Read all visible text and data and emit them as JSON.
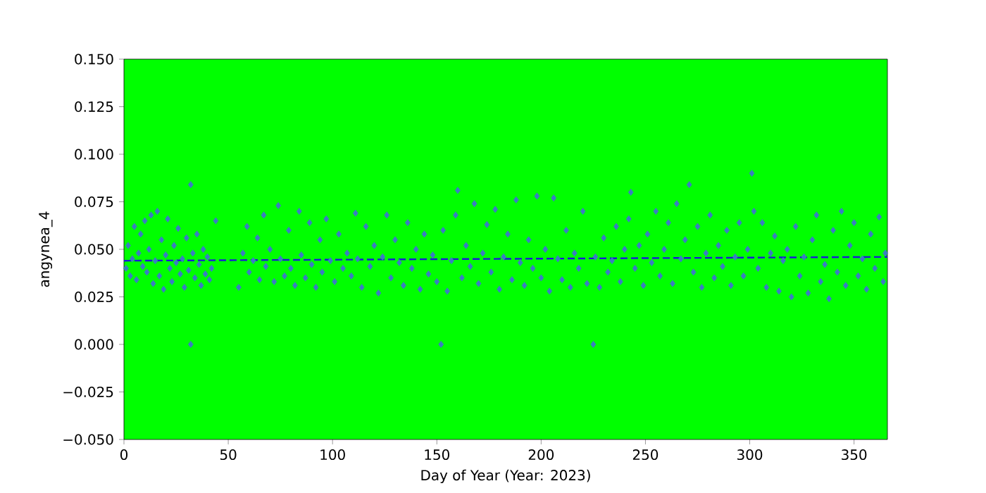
{
  "chart_data": {
    "type": "scatter",
    "xlabel": "Day of Year (Year: 2023)",
    "ylabel": "angynea_4",
    "xlim": [
      0,
      366
    ],
    "ylim": [
      -0.05,
      0.15
    ],
    "xticks": [
      0,
      50,
      100,
      150,
      200,
      250,
      300,
      350
    ],
    "yticks": [
      {
        "value": -0.05,
        "label": "−0.050"
      },
      {
        "value": -0.025,
        "label": "−0.025"
      },
      {
        "value": 0,
        "label": "0.000"
      },
      {
        "value": 0.025,
        "label": "0.025"
      },
      {
        "value": 0.05,
        "label": "0.050"
      },
      {
        "value": 0.075,
        "label": "0.075"
      },
      {
        "value": 0.1,
        "label": "0.100"
      },
      {
        "value": 0.125,
        "label": "0.125"
      },
      {
        "value": 0.15,
        "label": "0.150"
      }
    ],
    "series": [
      {
        "color": "#3a7dc2",
        "marker": "diamond",
        "x": [
          1,
          2,
          3,
          4,
          5,
          6,
          7,
          8,
          9,
          10,
          11,
          12,
          13,
          14,
          15,
          16,
          17,
          18,
          19,
          20,
          21,
          22,
          23,
          24,
          25,
          26,
          27,
          28,
          29,
          30,
          31,
          32,
          32,
          33,
          34,
          35,
          36,
          37,
          38,
          39,
          40,
          41,
          42,
          44,
          55,
          57,
          59,
          60,
          62,
          64,
          65,
          67,
          68,
          70,
          72,
          74,
          75,
          77,
          79,
          80,
          82,
          84,
          85,
          87,
          89,
          90,
          92,
          94,
          95,
          97,
          99,
          101,
          103,
          105,
          107,
          109,
          111,
          112,
          114,
          116,
          118,
          120,
          122,
          124,
          126,
          128,
          130,
          132,
          134,
          136,
          138,
          140,
          142,
          144,
          146,
          148,
          150,
          152,
          153,
          155,
          157,
          159,
          160,
          162,
          164,
          166,
          168,
          170,
          172,
          174,
          176,
          178,
          180,
          182,
          184,
          186,
          188,
          190,
          192,
          194,
          196,
          198,
          200,
          202,
          204,
          206,
          208,
          210,
          212,
          214,
          216,
          218,
          220,
          222,
          225,
          226,
          228,
          230,
          232,
          234,
          236,
          238,
          240,
          242,
          243,
          245,
          247,
          249,
          251,
          253,
          255,
          257,
          259,
          261,
          263,
          265,
          267,
          269,
          271,
          273,
          275,
          277,
          279,
          281,
          283,
          285,
          287,
          289,
          291,
          293,
          295,
          297,
          299,
          301,
          302,
          304,
          306,
          308,
          310,
          312,
          314,
          316,
          318,
          320,
          322,
          324,
          326,
          328,
          330,
          332,
          334,
          336,
          338,
          340,
          342,
          344,
          346,
          348,
          350,
          352,
          354,
          356,
          358,
          360,
          362,
          364,
          365
        ],
        "values": [
          0.04,
          0.052,
          0.036,
          0.045,
          0.062,
          0.034,
          0.048,
          0.058,
          0.041,
          0.065,
          0.038,
          0.05,
          0.068,
          0.032,
          0.044,
          0.07,
          0.036,
          0.055,
          0.029,
          0.047,
          0.066,
          0.04,
          0.033,
          0.052,
          0.043,
          0.061,
          0.037,
          0.045,
          0.03,
          0.056,
          0.039,
          0.084,
          0.0,
          0.048,
          0.035,
          0.058,
          0.042,
          0.031,
          0.05,
          0.037,
          0.046,
          0.034,
          0.04,
          0.065,
          0.03,
          0.048,
          0.062,
          0.038,
          0.044,
          0.056,
          0.034,
          0.068,
          0.041,
          0.05,
          0.033,
          0.073,
          0.045,
          0.036,
          0.06,
          0.04,
          0.031,
          0.07,
          0.047,
          0.035,
          0.064,
          0.042,
          0.03,
          0.055,
          0.038,
          0.066,
          0.044,
          0.033,
          0.058,
          0.04,
          0.048,
          0.036,
          0.069,
          0.045,
          0.03,
          0.062,
          0.041,
          0.052,
          0.027,
          0.046,
          0.068,
          0.035,
          0.055,
          0.043,
          0.031,
          0.064,
          0.04,
          0.05,
          0.029,
          0.058,
          0.037,
          0.047,
          0.033,
          0.0,
          0.06,
          0.028,
          0.044,
          0.068,
          0.081,
          0.035,
          0.052,
          0.041,
          0.074,
          0.032,
          0.048,
          0.063,
          0.038,
          0.071,
          0.029,
          0.046,
          0.058,
          0.034,
          0.076,
          0.043,
          0.031,
          0.055,
          0.04,
          0.078,
          0.035,
          0.05,
          0.028,
          0.077,
          0.045,
          0.034,
          0.06,
          0.03,
          0.048,
          0.04,
          0.07,
          0.032,
          0.0,
          0.046,
          0.03,
          0.056,
          0.038,
          0.044,
          0.062,
          0.033,
          0.05,
          0.066,
          0.08,
          0.04,
          0.052,
          0.031,
          0.058,
          0.043,
          0.07,
          0.036,
          0.05,
          0.064,
          0.032,
          0.074,
          0.045,
          0.055,
          0.084,
          0.038,
          0.062,
          0.03,
          0.048,
          0.068,
          0.035,
          0.052,
          0.041,
          0.06,
          0.031,
          0.046,
          0.064,
          0.036,
          0.05,
          0.09,
          0.07,
          0.04,
          0.064,
          0.03,
          0.048,
          0.057,
          0.028,
          0.044,
          0.05,
          0.025,
          0.062,
          0.036,
          0.046,
          0.027,
          0.055,
          0.068,
          0.033,
          0.042,
          0.024,
          0.06,
          0.038,
          0.07,
          0.031,
          0.052,
          0.064,
          0.036,
          0.045,
          0.029,
          0.058,
          0.04,
          0.067,
          0.033,
          0.048
        ]
      },
      {
        "type": "line",
        "color": "#1a1ad6",
        "marker": "none",
        "line_style": "dashed",
        "x": [
          0,
          366
        ],
        "values": [
          0.044,
          0.046
        ]
      }
    ]
  }
}
